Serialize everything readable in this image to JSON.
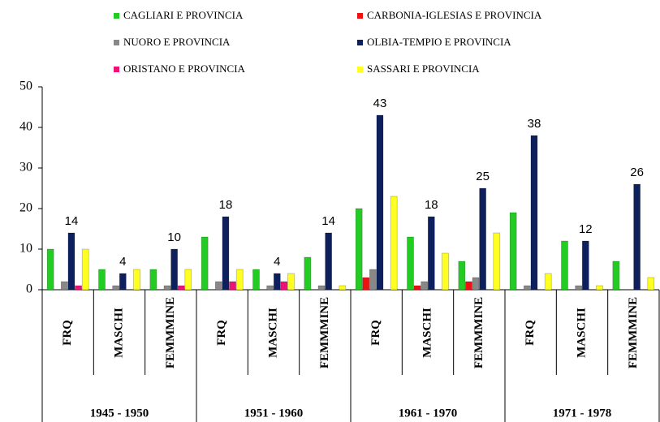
{
  "chart_data": {
    "type": "bar",
    "categories": [
      "FRQ",
      "MASCHI",
      "FEMMMINE",
      "FRQ",
      "MASCHI",
      "FEMMMINE",
      "FRQ",
      "MASCHI",
      "FEMMMINE",
      "FRQ",
      "MASCHI",
      "FEMMMINE"
    ],
    "category_groups": [
      "1945 - 1950",
      "1951 - 1960",
      "1961 - 1970",
      "1971 - 1978"
    ],
    "series": [
      {
        "name": "CAGLIARI E PROVINCIA",
        "color": "#22cc22",
        "values": [
          10,
          5,
          5,
          13,
          5,
          8,
          20,
          13,
          7,
          19,
          12,
          7
        ]
      },
      {
        "name": "CARBONIA-IGLESIAS E PROVINCIA",
        "color": "#ee1111",
        "values": [
          0,
          0,
          0,
          0,
          0,
          0,
          3,
          1,
          2,
          0,
          0,
          0
        ]
      },
      {
        "name": "NUORO E PROVINCIA",
        "color": "#888888",
        "values": [
          2,
          1,
          1,
          2,
          1,
          1,
          5,
          2,
          3,
          1,
          1,
          0
        ]
      },
      {
        "name": "OLBIA-TEMPIO E PROVINCIA",
        "color": "#0d1f5c",
        "values": [
          14,
          4,
          10,
          18,
          4,
          14,
          43,
          18,
          25,
          38,
          12,
          26
        ],
        "data_labels": true
      },
      {
        "name": "ORISTANO E PROVINCIA",
        "color": "#ee1177",
        "values": [
          1,
          0,
          1,
          2,
          2,
          0,
          0,
          0,
          0,
          0,
          0,
          0
        ]
      },
      {
        "name": "SASSARI E PROVINCIA",
        "color": "#ffff22",
        "values": [
          10,
          5,
          5,
          5,
          4,
          1,
          23,
          9,
          14,
          4,
          1,
          3
        ]
      }
    ],
    "ylim": [
      0,
      50
    ],
    "yticks": [
      0,
      10,
      20,
      30,
      40,
      50
    ],
    "legend": "top"
  }
}
